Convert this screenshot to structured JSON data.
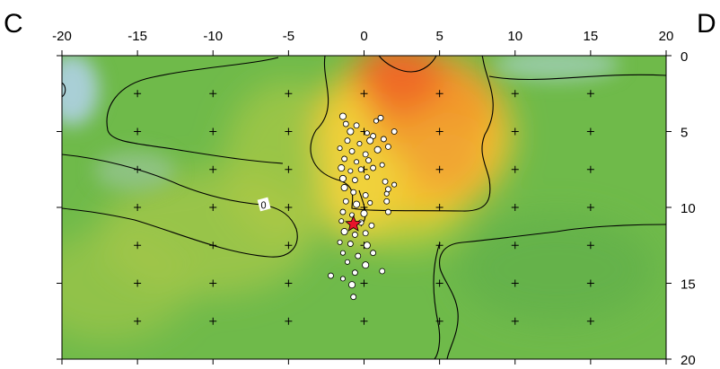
{
  "chart_data": {
    "type": "scatter",
    "profile_labels": {
      "start": "C",
      "end": "D"
    },
    "x_ticks": [
      "-20",
      "-15",
      "-10",
      "-5",
      "0",
      "5",
      "10",
      "15",
      "20"
    ],
    "y_ticks": [
      "0",
      "5",
      "10",
      "15",
      "20"
    ],
    "xlim": [
      -20,
      20
    ],
    "ylim": [
      0,
      20
    ],
    "y_inverted": true,
    "contour_label": "0",
    "colors": {
      "background_green": "#6fba4a",
      "high_anomaly": "#f06a2a",
      "mid_anomaly": "#f4c52e",
      "low_anomaly": "#a9cfd6",
      "event_fill": "#ffffff",
      "mainshock": "#e8142a"
    },
    "mainshock": {
      "x": -0.7,
      "y": 11.1
    },
    "events": [
      [
        -1.4,
        4.0
      ],
      [
        -1.2,
        4.5
      ],
      [
        -0.5,
        4.6
      ],
      [
        0.8,
        4.3
      ],
      [
        1.1,
        4.1
      ],
      [
        -0.9,
        5.0
      ],
      [
        0.2,
        5.1
      ],
      [
        0.6,
        5.3
      ],
      [
        -1.1,
        5.6
      ],
      [
        -0.3,
        5.8
      ],
      [
        0.4,
        5.6
      ],
      [
        1.3,
        5.5
      ],
      [
        -1.6,
        6.1
      ],
      [
        -0.8,
        6.3
      ],
      [
        0.1,
        6.5
      ],
      [
        0.9,
        6.2
      ],
      [
        1.6,
        6.0
      ],
      [
        -1.3,
        6.8
      ],
      [
        -0.5,
        7.0
      ],
      [
        0.3,
        6.9
      ],
      [
        -1.5,
        7.4
      ],
      [
        -0.9,
        7.6
      ],
      [
        -0.2,
        7.5
      ],
      [
        0.6,
        7.4
      ],
      [
        1.2,
        7.2
      ],
      [
        -1.4,
        8.1
      ],
      [
        -0.6,
        8.2
      ],
      [
        0.2,
        8.0
      ],
      [
        1.4,
        8.3
      ],
      [
        1.6,
        8.8
      ],
      [
        -1.3,
        8.7
      ],
      [
        -0.7,
        9.0
      ],
      [
        0.1,
        9.2
      ],
      [
        1.5,
        9.1
      ],
      [
        -1.2,
        9.6
      ],
      [
        -0.5,
        9.8
      ],
      [
        0.4,
        9.7
      ],
      [
        1.5,
        9.6
      ],
      [
        -1.4,
        10.3
      ],
      [
        -0.8,
        10.5
      ],
      [
        0.0,
        10.4
      ],
      [
        1.6,
        10.3
      ],
      [
        -1.5,
        10.9
      ],
      [
        -0.2,
        11.0
      ],
      [
        0.5,
        11.2
      ],
      [
        -1.3,
        11.6
      ],
      [
        -0.6,
        11.8
      ],
      [
        0.1,
        11.7
      ],
      [
        -1.6,
        12.3
      ],
      [
        -0.9,
        12.4
      ],
      [
        0.2,
        12.5
      ],
      [
        -1.4,
        13.0
      ],
      [
        -0.4,
        13.2
      ],
      [
        0.6,
        13.0
      ],
      [
        -1.1,
        13.6
      ],
      [
        0.1,
        13.8
      ],
      [
        -2.2,
        14.5
      ],
      [
        -1.4,
        14.7
      ],
      [
        -0.6,
        14.3
      ],
      [
        1.2,
        14.2
      ],
      [
        -0.8,
        15.1
      ],
      [
        -0.7,
        15.9
      ],
      [
        2.0,
        5.0
      ],
      [
        2.0,
        8.5
      ]
    ]
  }
}
